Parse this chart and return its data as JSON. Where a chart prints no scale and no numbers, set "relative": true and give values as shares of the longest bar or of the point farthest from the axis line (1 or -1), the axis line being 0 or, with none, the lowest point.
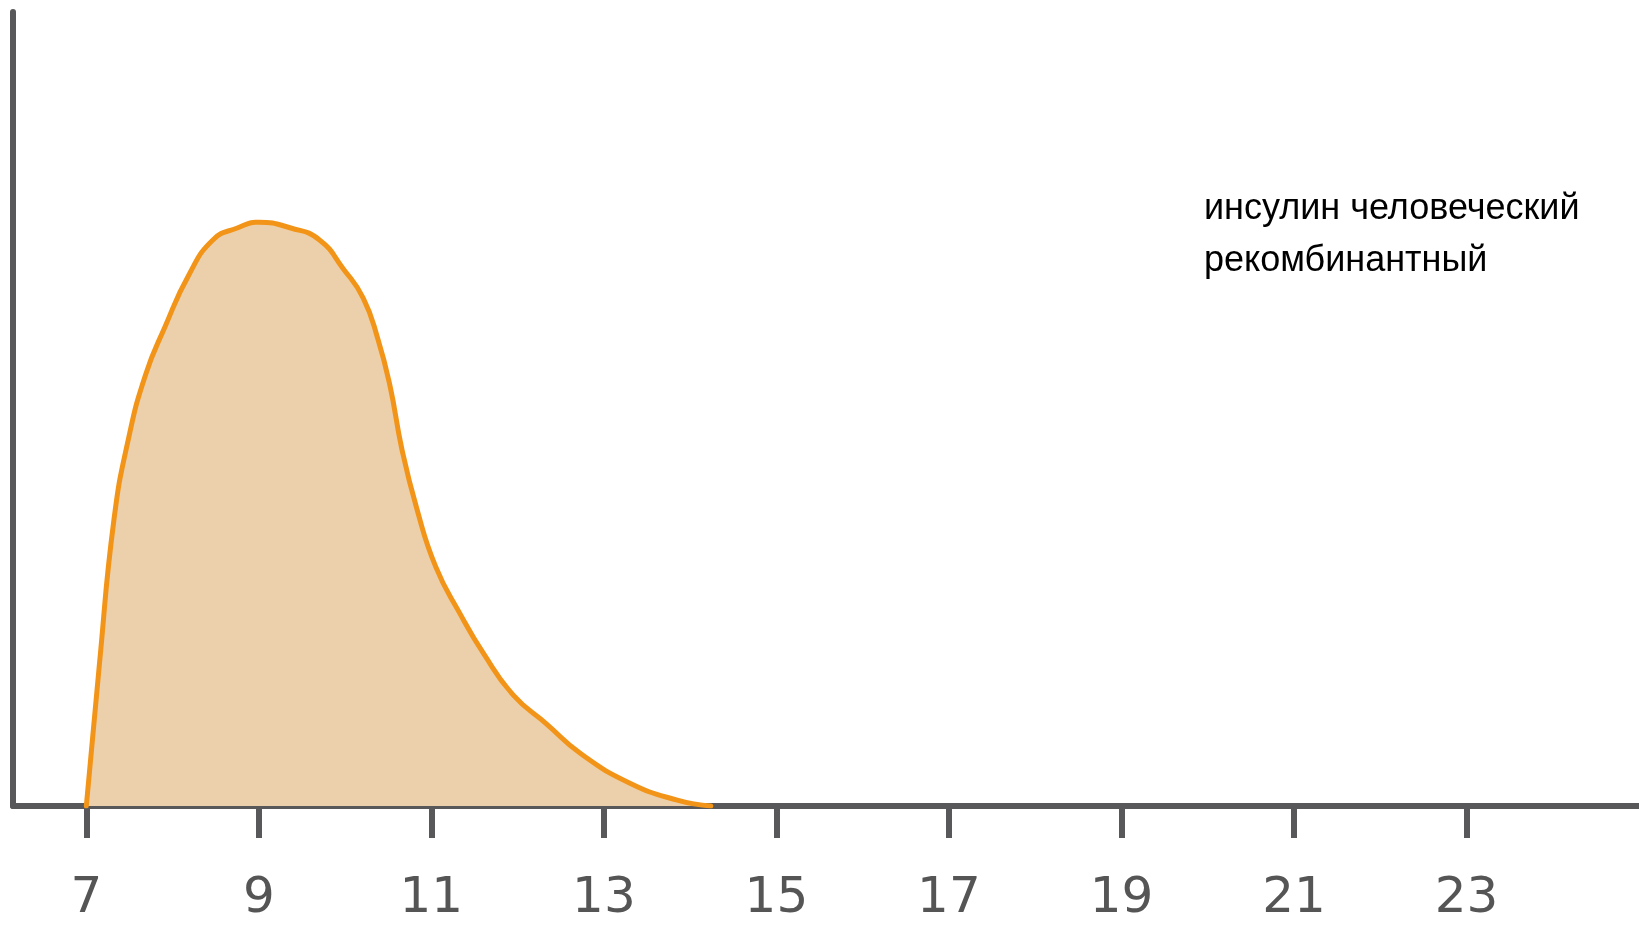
{
  "chart_data": {
    "type": "area",
    "relative": true,
    "marker": "none",
    "color": "#f29418",
    "x": [
      7.0,
      7.15,
      7.32,
      7.49,
      7.69,
      7.91,
      8.19,
      8.47,
      8.75,
      9.0,
      9.37,
      9.7,
      9.98,
      10.21,
      10.38,
      10.52,
      10.66,
      10.83,
      11.05,
      11.33,
      11.61,
      11.95,
      12.34,
      12.73,
      13.29,
      13.85,
      14.24
    ],
    "values": [
      0,
      0.24,
      0.49,
      0.63,
      0.74,
      0.82,
      0.91,
      0.97,
      0.99,
      1.0,
      0.99,
      0.97,
      0.92,
      0.87,
      0.8,
      0.72,
      0.61,
      0.51,
      0.41,
      0.33,
      0.26,
      0.19,
      0.14,
      0.09,
      0.04,
      0.01,
      0
    ],
    "xlim": [
      6.15,
      25
    ],
    "xticks": [
      7,
      9,
      11,
      13,
      15,
      17,
      19,
      21,
      23
    ],
    "annotations": [
      "инсулин человеческий рекомбинантный"
    ]
  }
}
